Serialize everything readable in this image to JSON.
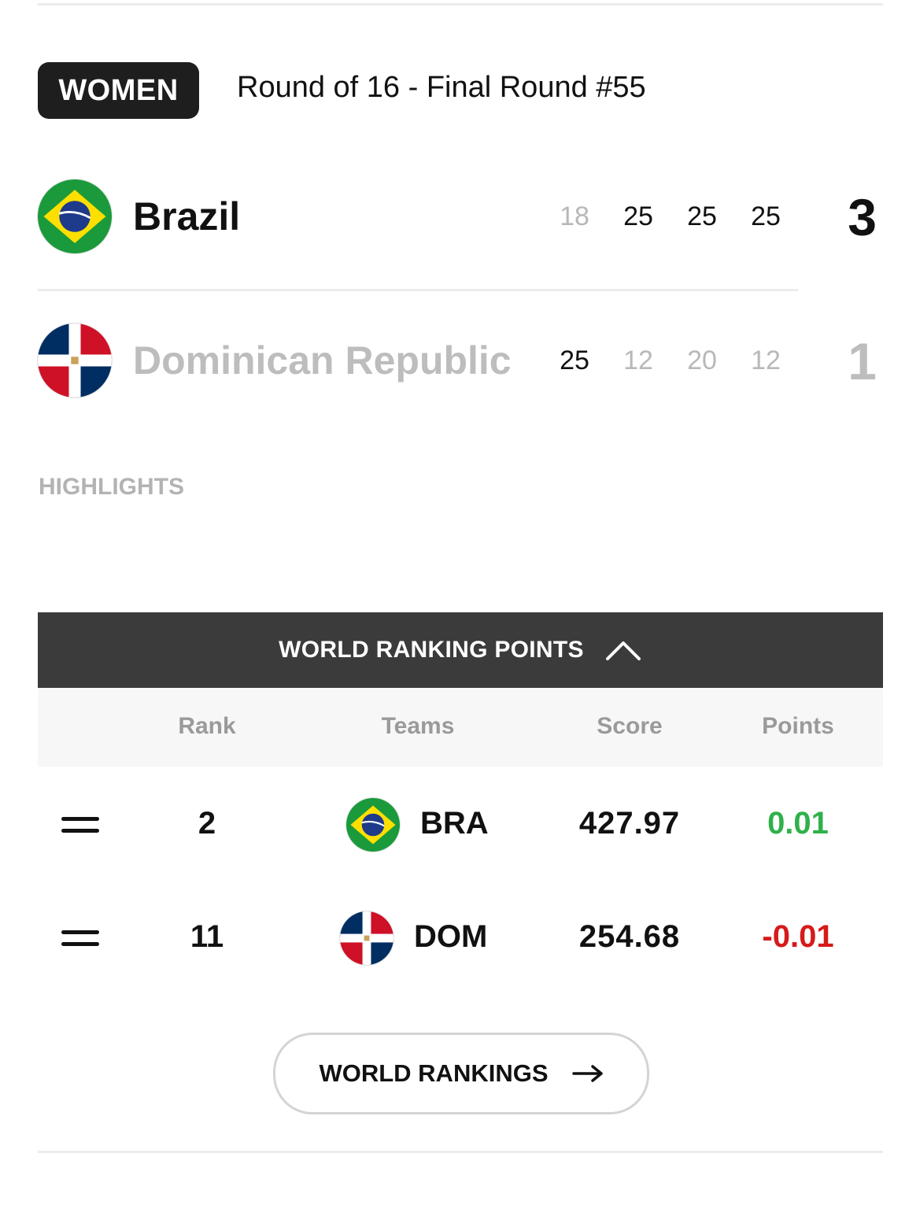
{
  "match": {
    "category": "WOMEN",
    "round": "Round of 16 - Final Round #55",
    "teams": [
      {
        "name": "Brazil",
        "flag": "brazil-flag",
        "sets": [
          "18",
          "25",
          "25",
          "25"
        ],
        "sets_won": [
          false,
          true,
          true,
          true
        ],
        "score": "3",
        "winner": true
      },
      {
        "name": "Dominican Republic",
        "flag": "dominican-republic-flag",
        "sets": [
          "25",
          "12",
          "20",
          "12"
        ],
        "sets_won": [
          true,
          false,
          false,
          false
        ],
        "score": "1",
        "winner": false
      }
    ]
  },
  "highlights_label": "HIGHLIGHTS",
  "world_ranking": {
    "header": "WORLD RANKING POINTS",
    "columns": {
      "rank": "Rank",
      "teams": "Teams",
      "score": "Score",
      "points": "Points"
    },
    "rows": [
      {
        "change_icon": "equals-icon",
        "rank": "2",
        "flag": "brazil-flag",
        "code": "BRA",
        "score": "427.97",
        "points": "0.01"
      },
      {
        "change_icon": "equals-icon",
        "rank": "11",
        "flag": "dominican-republic-flag",
        "code": "DOM",
        "score": "254.68",
        "points": "-0.01"
      }
    ],
    "colors": {
      "positive": "#2fb14a",
      "negative": "#d61a1a"
    }
  },
  "rankings_button": {
    "label": "WORLD RANKINGS",
    "icon": "arrow-right-icon"
  }
}
